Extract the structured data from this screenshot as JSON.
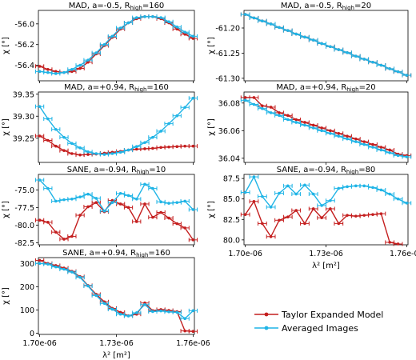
{
  "chart_data": [
    {
      "type": "line",
      "title": "MAD, a=-0.5, R",
      "title_sub": "high",
      "title_post": "=160",
      "ylabel": "χ [°]",
      "ylim": [
        -56.55,
        -55.87
      ],
      "yticks": [
        -56.0,
        -56.2,
        -56.4
      ],
      "ytick_labels": [
        "-56.0",
        "-56.2",
        "-56.4"
      ],
      "series": [
        {
          "name": "Taylor Expanded Model",
          "color": "#c41e1e",
          "values": [
            -56.41,
            -56.44,
            -56.46,
            -56.47,
            -56.46,
            -56.43,
            -56.37,
            -56.29,
            -56.21,
            -56.13,
            -56.05,
            -55.99,
            -55.95,
            -55.93,
            -55.93,
            -55.95,
            -55.99,
            -56.05,
            -56.1,
            -56.14
          ]
        },
        {
          "name": "Averaged Images",
          "color": "#1fb4e6",
          "values": [
            -56.46,
            -56.47,
            -56.48,
            -56.47,
            -56.44,
            -56.4,
            -56.35,
            -56.28,
            -56.2,
            -56.12,
            -56.04,
            -55.99,
            -55.94,
            -55.93,
            -55.93,
            -55.94,
            -55.98,
            -56.03,
            -56.08,
            -56.12
          ]
        }
      ]
    },
    {
      "type": "line",
      "title": "MAD, a=-0.5, R",
      "title_sub": "high",
      "title_post": "=20",
      "ylabel": "χ [°]",
      "ylim": [
        -61.305,
        -61.165
      ],
      "yticks": [
        -61.2,
        -61.25,
        -61.3
      ],
      "ytick_labels": [
        "-61.20",
        "-61.25",
        "-61.30"
      ],
      "series": [
        {
          "name": "Taylor Expanded Model",
          "color": "#c41e1e",
          "values": [
            -61.173,
            -61.18,
            -61.186,
            -61.192,
            -61.199,
            -61.205,
            -61.212,
            -61.218,
            -61.224,
            -61.231,
            -61.237,
            -61.243,
            -61.249,
            -61.256,
            -61.262,
            -61.268,
            -61.274,
            -61.281,
            -61.287,
            -61.294
          ]
        },
        {
          "name": "Averaged Images",
          "color": "#1fb4e6",
          "values": [
            -61.173,
            -61.18,
            -61.186,
            -61.192,
            -61.199,
            -61.205,
            -61.212,
            -61.218,
            -61.224,
            -61.231,
            -61.237,
            -61.243,
            -61.249,
            -61.256,
            -61.262,
            -61.268,
            -61.274,
            -61.281,
            -61.287,
            -61.294
          ]
        }
      ]
    },
    {
      "type": "line",
      "title": "MAD, a=+0.94, R",
      "title_sub": "high",
      "title_post": "=160",
      "ylabel": "χ [°]",
      "ylim": [
        39.195,
        39.355
      ],
      "yticks": [
        39.35,
        39.3,
        39.25
      ],
      "ytick_labels": [
        "39.35",
        "39.30",
        "39.25"
      ],
      "series": [
        {
          "name": "Taylor Expanded Model",
          "color": "#c41e1e",
          "values": [
            39.255,
            39.245,
            39.232,
            39.222,
            39.215,
            39.212,
            39.213,
            39.214,
            39.216,
            39.218,
            39.22,
            39.223,
            39.225,
            39.226,
            39.227,
            39.229,
            39.23,
            39.231,
            39.232,
            39.232
          ]
        },
        {
          "name": "Averaged Images",
          "color": "#1fb4e6",
          "values": [
            39.322,
            39.294,
            39.27,
            39.252,
            39.238,
            39.228,
            39.219,
            39.215,
            39.213,
            39.215,
            39.218,
            39.223,
            39.231,
            39.24,
            39.252,
            39.266,
            39.283,
            39.301,
            39.32,
            39.341
          ]
        }
      ]
    },
    {
      "type": "line",
      "title": "MAD, a=+0.94, R",
      "title_sub": "high",
      "title_post": "=20",
      "ylabel": "χ [°]",
      "ylim": [
        36.037,
        36.088
      ],
      "yticks": [
        36.08,
        36.06,
        36.04
      ],
      "ytick_labels": [
        "36.08",
        "36.06",
        "36.04"
      ],
      "series": [
        {
          "name": "Taylor Expanded Model",
          "color": "#c41e1e",
          "values": [
            36.084,
            36.084,
            36.078,
            36.077,
            36.073,
            36.071,
            36.068,
            36.066,
            36.064,
            36.062,
            36.06,
            36.058,
            36.056,
            36.054,
            36.052,
            36.05,
            36.048,
            36.046,
            36.043,
            36.042
          ]
        },
        {
          "name": "Averaged Images",
          "color": "#1fb4e6",
          "values": [
            36.082,
            36.079,
            36.076,
            36.073,
            36.071,
            36.068,
            36.066,
            36.064,
            36.062,
            36.06,
            36.058,
            36.056,
            36.054,
            36.052,
            36.05,
            36.048,
            36.046,
            36.044,
            36.042,
            36.041
          ]
        }
      ]
    },
    {
      "type": "line",
      "title": "SANE, a=-0.94, R",
      "title_sub": "high",
      "title_post": "=10",
      "ylabel": "χ [°]",
      "ylim": [
        -82.8,
        -72.8
      ],
      "yticks": [
        -75.0,
        -77.5,
        -80.0,
        -82.5
      ],
      "ytick_labels": [
        "-75.0",
        "-77.5",
        "-80.0",
        "-82.5"
      ],
      "series": [
        {
          "name": "Taylor Expanded Model",
          "color": "#c41e1e",
          "values": [
            -79.3,
            -79.6,
            -81.0,
            -82.0,
            -81.6,
            -78.6,
            -77.4,
            -76.8,
            -78.1,
            -76.5,
            -77.0,
            -77.5,
            -79.5,
            -77.0,
            -78.9,
            -78.2,
            -79.0,
            -79.8,
            -80.4,
            -82.1
          ]
        },
        {
          "name": "Averaged Images",
          "color": "#1fb4e6",
          "values": [
            -73.6,
            -74.8,
            -76.6,
            -76.4,
            -76.3,
            -76.0,
            -75.6,
            -76.2,
            -78.0,
            -76.8,
            -75.5,
            -75.8,
            -76.3,
            -74.2,
            -74.8,
            -76.7,
            -76.9,
            -76.8,
            -76.6,
            -77.8
          ]
        }
      ]
    },
    {
      "type": "line",
      "title": "SANE, a=-0.94, R",
      "title_sub": "high",
      "title_post": "=80",
      "ylabel": "χ [°]",
      "ylim": [
        79.4,
        88.0
      ],
      "yticks": [
        87.5,
        85.0,
        82.5,
        80.0
      ],
      "ytick_labels": [
        "87.5",
        "85.0",
        "82.5",
        "80.0"
      ],
      "series": [
        {
          "name": "Taylor Expanded Model",
          "color": "#c41e1e",
          "values": [
            83.1,
            84.7,
            82.0,
            80.4,
            82.4,
            82.8,
            83.6,
            82.0,
            83.8,
            82.7,
            83.8,
            82.0,
            83.0,
            82.9,
            83.0,
            83.1,
            83.2,
            79.7,
            79.5,
            null
          ]
        },
        {
          "name": "Averaged Images",
          "color": "#1fb4e6",
          "values": [
            85.8,
            87.7,
            85.3,
            84.0,
            85.7,
            86.6,
            85.6,
            86.7,
            85.6,
            84.2,
            84.8,
            86.3,
            86.5,
            86.6,
            86.6,
            86.4,
            86.1,
            85.6,
            85.0,
            84.5
          ]
        }
      ]
    },
    {
      "type": "line",
      "title": "SANE, a=+0.94, R",
      "title_sub": "high",
      "title_post": "=160",
      "ylabel": "χ [°]",
      "xlabel": "λ² [m²]",
      "ylim": [
        -5,
        325
      ],
      "yticks": [
        300,
        200,
        100,
        0
      ],
      "ytick_labels": [
        "300",
        "200",
        "100",
        "0"
      ],
      "xticks": [
        1.7e-06,
        1.73e-06,
        1.76e-06
      ],
      "xtick_labels": [
        "1.70e-06",
        "1.73e-06",
        "1.76e-06"
      ],
      "series": [
        {
          "name": "Taylor Expanded Model",
          "color": "#c41e1e",
          "values": [
            313,
            300,
            291,
            280,
            266,
            243,
            205,
            167,
            135,
            107,
            90,
            75,
            82,
            130,
            97,
            102,
            98,
            93,
            10,
            8
          ]
        },
        {
          "name": "Averaged Images",
          "color": "#1fb4e6",
          "values": [
            300,
            297,
            285,
            275,
            263,
            240,
            203,
            162,
            128,
            103,
            82,
            74,
            88,
            123,
            93,
            96,
            92,
            90,
            63,
            97
          ]
        }
      ]
    }
  ],
  "x": [
    1.7e-06,
    1.7032e-06,
    1.7063e-06,
    1.7095e-06,
    1.7126e-06,
    1.7158e-06,
    1.7189e-06,
    1.7221e-06,
    1.7253e-06,
    1.7284e-06,
    1.7316e-06,
    1.7347e-06,
    1.7379e-06,
    1.7411e-06,
    1.7442e-06,
    1.7474e-06,
    1.7505e-06,
    1.7537e-06,
    1.7568e-06,
    1.76e-06
  ],
  "x_shared": {
    "xlim": [
      1.6995e-06,
      1.7605e-06
    ],
    "xticks": [
      1.7e-06,
      1.73e-06,
      1.76e-06
    ],
    "xtick_labels": [
      "1.70e-06",
      "1.73e-06",
      "1.76e-06"
    ],
    "xlabel": "λ² [m²]"
  },
  "legend": {
    "placement": "lower-right",
    "items": [
      {
        "label": "Taylor Expanded Model",
        "color": "#c41e1e"
      },
      {
        "label": "Averaged Images",
        "color": "#1fb4e6"
      }
    ]
  }
}
